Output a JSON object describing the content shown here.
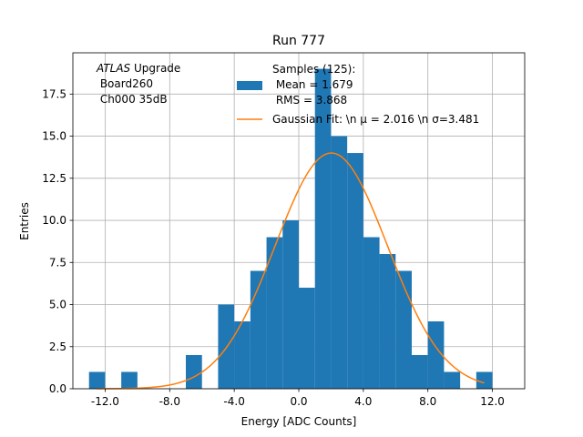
{
  "chart_data": {
    "type": "bar",
    "title": "Run 777",
    "xlabel": "Energy [ADC Counts]",
    "ylabel": "Entries",
    "xlim": [
      -14.0,
      14.0
    ],
    "ylim": [
      0,
      19.95
    ],
    "x_ticks": [
      -12.0,
      -8.0,
      -4.0,
      0.0,
      4.0,
      8.0,
      12.0
    ],
    "x_tick_labels": [
      "-12.0",
      "-8.0",
      "-4.0",
      "0.0",
      "4.0",
      "8.0",
      "12.0"
    ],
    "y_ticks": [
      0.0,
      2.5,
      5.0,
      7.5,
      10.0,
      12.5,
      15.0,
      17.5
    ],
    "y_tick_labels": [
      "0.0",
      "2.5",
      "5.0",
      "7.5",
      "10.0",
      "12.5",
      "15.0",
      "17.5"
    ],
    "grid": true,
    "histogram": {
      "name": "Samples (125):\n Mean = 1.679\n RMS = 3.868",
      "color": "#1f77b4",
      "bins": [
        {
          "x0": -13.0,
          "x1": -12.0,
          "count": 1
        },
        {
          "x0": -12.0,
          "x1": -11.0,
          "count": 0
        },
        {
          "x0": -11.0,
          "x1": -10.0,
          "count": 1
        },
        {
          "x0": -10.0,
          "x1": -9.0,
          "count": 0
        },
        {
          "x0": -9.0,
          "x1": -8.0,
          "count": 0
        },
        {
          "x0": -8.0,
          "x1": -7.0,
          "count": 0
        },
        {
          "x0": -7.0,
          "x1": -6.0,
          "count": 2
        },
        {
          "x0": -6.0,
          "x1": -5.0,
          "count": 0
        },
        {
          "x0": -5.0,
          "x1": -4.0,
          "count": 5
        },
        {
          "x0": -4.0,
          "x1": -3.0,
          "count": 4
        },
        {
          "x0": -3.0,
          "x1": -2.0,
          "count": 7
        },
        {
          "x0": -2.0,
          "x1": -1.0,
          "count": 9
        },
        {
          "x0": -1.0,
          "x1": 0.0,
          "count": 10
        },
        {
          "x0": 0.0,
          "x1": 1.0,
          "count": 6
        },
        {
          "x0": 1.0,
          "x1": 2.0,
          "count": 19
        },
        {
          "x0": 2.0,
          "x1": 3.0,
          "count": 15
        },
        {
          "x0": 3.0,
          "x1": 4.0,
          "count": 14
        },
        {
          "x0": 4.0,
          "x1": 5.0,
          "count": 9
        },
        {
          "x0": 5.0,
          "x1": 6.0,
          "count": 8
        },
        {
          "x0": 6.0,
          "x1": 7.0,
          "count": 7
        },
        {
          "x0": 7.0,
          "x1": 8.0,
          "count": 2
        },
        {
          "x0": 8.0,
          "x1": 9.0,
          "count": 4
        },
        {
          "x0": 9.0,
          "x1": 10.0,
          "count": 1
        },
        {
          "x0": 10.0,
          "x1": 11.0,
          "count": 0
        },
        {
          "x0": 11.0,
          "x1": 12.0,
          "count": 1
        }
      ]
    },
    "fit": {
      "name": "Gaussian Fit: \\n $\\mu$ = 2.016 \\n $\\sigma$=3.481",
      "legend_label": "Gaussian Fit: \\n μ = 2.016 \\n σ=3.481",
      "color": "#ff7f0e",
      "mu": 2.016,
      "sigma": 3.481,
      "amplitude": 14.0,
      "x_range": [
        -12.5,
        11.5
      ]
    },
    "annotation": {
      "line1_italic": "ATLAS",
      "line1_rest": " Upgrade",
      "line2": " Board260",
      "line3": " Ch000 35dB"
    },
    "legend": {
      "placement": "upper center",
      "hist_lines": [
        "Samples (125):",
        " Mean = 1.679",
        " RMS = 3.868"
      ]
    }
  }
}
